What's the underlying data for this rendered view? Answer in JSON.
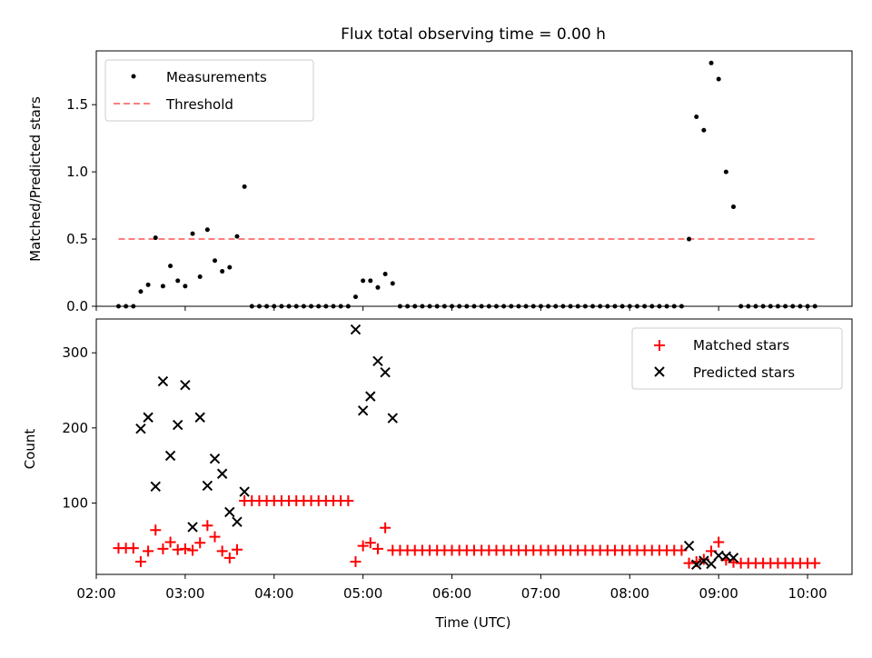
{
  "figure": {
    "title": "Flux total observing time = 0.00 h"
  },
  "colors": {
    "measurement": "#000000",
    "threshold": "#ff7f7f",
    "matched": "#ff0000",
    "predicted": "#000000"
  },
  "chart_data": [
    {
      "type": "scatter",
      "title": "Flux total observing time = 0.00 h",
      "xlabel": "",
      "ylabel": "Matched/Predicted stars",
      "xlim": [
        "02:00",
        "10:30"
      ],
      "ylim": [
        0,
        1.9
      ],
      "yticks": [
        0.0,
        0.5,
        1.0,
        1.5
      ],
      "ytick_labels": [
        "0.0",
        "0.5",
        "1.0",
        "1.5"
      ],
      "grid": false,
      "legend_position": "top-left",
      "threshold": {
        "name": "Threshold",
        "y": 0.5,
        "x_range": [
          "02:15",
          "10:05"
        ]
      },
      "series": [
        {
          "name": "Measurements",
          "points": [
            [
              "02:15",
              0
            ],
            [
              "02:20",
              0
            ],
            [
              "02:25",
              0
            ],
            [
              "02:30",
              0.11
            ],
            [
              "02:35",
              0.16
            ],
            [
              "02:40",
              0.51
            ],
            [
              "02:45",
              0.15
            ],
            [
              "02:50",
              0.3
            ],
            [
              "02:55",
              0.19
            ],
            [
              "03:00",
              0.15
            ],
            [
              "03:05",
              0.54
            ],
            [
              "03:10",
              0.22
            ],
            [
              "03:15",
              0.57
            ],
            [
              "03:20",
              0.34
            ],
            [
              "03:25",
              0.26
            ],
            [
              "03:30",
              0.29
            ],
            [
              "03:35",
              0.52
            ],
            [
              "03:40",
              0.89
            ],
            [
              "03:45",
              0
            ],
            [
              "03:50",
              0
            ],
            [
              "03:55",
              0
            ],
            [
              "04:00",
              0
            ],
            [
              "04:05",
              0
            ],
            [
              "04:10",
              0
            ],
            [
              "04:15",
              0
            ],
            [
              "04:20",
              0
            ],
            [
              "04:25",
              0
            ],
            [
              "04:30",
              0
            ],
            [
              "04:35",
              0
            ],
            [
              "04:40",
              0
            ],
            [
              "04:45",
              0
            ],
            [
              "04:50",
              0
            ],
            [
              "04:55",
              0.07
            ],
            [
              "05:00",
              0.19
            ],
            [
              "05:05",
              0.19
            ],
            [
              "05:10",
              0.14
            ],
            [
              "05:15",
              0.24
            ],
            [
              "05:20",
              0.17
            ],
            [
              "05:25",
              0
            ],
            [
              "05:30",
              0
            ],
            [
              "05:35",
              0
            ],
            [
              "05:40",
              0
            ],
            [
              "05:45",
              0
            ],
            [
              "05:50",
              0
            ],
            [
              "05:55",
              0
            ],
            [
              "06:00",
              0
            ],
            [
              "06:05",
              0
            ],
            [
              "06:10",
              0
            ],
            [
              "06:15",
              0
            ],
            [
              "06:20",
              0
            ],
            [
              "06:25",
              0
            ],
            [
              "06:30",
              0
            ],
            [
              "06:35",
              0
            ],
            [
              "06:40",
              0
            ],
            [
              "06:45",
              0
            ],
            [
              "06:50",
              0
            ],
            [
              "06:55",
              0
            ],
            [
              "07:00",
              0
            ],
            [
              "07:05",
              0
            ],
            [
              "07:10",
              0
            ],
            [
              "07:15",
              0
            ],
            [
              "07:20",
              0
            ],
            [
              "07:25",
              0
            ],
            [
              "07:30",
              0
            ],
            [
              "07:35",
              0
            ],
            [
              "07:40",
              0
            ],
            [
              "07:45",
              0
            ],
            [
              "07:50",
              0
            ],
            [
              "07:55",
              0
            ],
            [
              "08:00",
              0
            ],
            [
              "08:05",
              0
            ],
            [
              "08:10",
              0
            ],
            [
              "08:15",
              0
            ],
            [
              "08:20",
              0
            ],
            [
              "08:25",
              0
            ],
            [
              "08:30",
              0
            ],
            [
              "08:35",
              0
            ],
            [
              "08:40",
              0.5
            ],
            [
              "08:45",
              1.41
            ],
            [
              "08:50",
              1.31
            ],
            [
              "08:55",
              1.81
            ],
            [
              "09:00",
              1.69
            ],
            [
              "09:05",
              1.0
            ],
            [
              "09:10",
              0.74
            ],
            [
              "09:15",
              0
            ],
            [
              "09:20",
              0
            ],
            [
              "09:25",
              0
            ],
            [
              "09:30",
              0
            ],
            [
              "09:35",
              0
            ],
            [
              "09:40",
              0
            ],
            [
              "09:45",
              0
            ],
            [
              "09:50",
              0
            ],
            [
              "09:55",
              0
            ],
            [
              "10:00",
              0
            ],
            [
              "10:05",
              0
            ]
          ]
        }
      ]
    },
    {
      "type": "scatter",
      "title": "",
      "xlabel": "Time (UTC)",
      "ylabel": "Count",
      "xlim": [
        "02:00",
        "10:30"
      ],
      "ylim": [
        5,
        345
      ],
      "xticks": [
        "02:00",
        "03:00",
        "04:00",
        "05:00",
        "06:00",
        "07:00",
        "08:00",
        "09:00",
        "10:00"
      ],
      "yticks": [
        100,
        200,
        300
      ],
      "ytick_labels": [
        "100",
        "200",
        "300"
      ],
      "grid": false,
      "legend_position": "top-right",
      "series": [
        {
          "name": "Matched stars",
          "marker": "plus",
          "points": [
            [
              "02:15",
              40
            ],
            [
              "02:20",
              40
            ],
            [
              "02:25",
              40
            ],
            [
              "02:30",
              22
            ],
            [
              "02:35",
              36
            ],
            [
              "02:40",
              64
            ],
            [
              "02:45",
              39
            ],
            [
              "02:50",
              48
            ],
            [
              "02:55",
              38
            ],
            [
              "03:00",
              39
            ],
            [
              "03:05",
              37
            ],
            [
              "03:10",
              47
            ],
            [
              "03:15",
              70
            ],
            [
              "03:20",
              55
            ],
            [
              "03:25",
              36
            ],
            [
              "03:30",
              27
            ],
            [
              "03:35",
              38
            ],
            [
              "03:40",
              103
            ],
            [
              "03:45",
              103
            ],
            [
              "03:50",
              103
            ],
            [
              "03:55",
              103
            ],
            [
              "04:00",
              103
            ],
            [
              "04:05",
              103
            ],
            [
              "04:10",
              103
            ],
            [
              "04:15",
              103
            ],
            [
              "04:20",
              103
            ],
            [
              "04:25",
              103
            ],
            [
              "04:30",
              103
            ],
            [
              "04:35",
              103
            ],
            [
              "04:40",
              103
            ],
            [
              "04:45",
              103
            ],
            [
              "04:50",
              103
            ],
            [
              "04:55",
              22
            ],
            [
              "05:00",
              43
            ],
            [
              "05:05",
              47
            ],
            [
              "05:10",
              39
            ],
            [
              "05:15",
              67
            ],
            [
              "05:20",
              37
            ],
            [
              "05:25",
              37
            ],
            [
              "05:30",
              37
            ],
            [
              "05:35",
              37
            ],
            [
              "05:40",
              37
            ],
            [
              "05:45",
              37
            ],
            [
              "05:50",
              37
            ],
            [
              "05:55",
              37
            ],
            [
              "06:00",
              37
            ],
            [
              "06:05",
              37
            ],
            [
              "06:10",
              37
            ],
            [
              "06:15",
              37
            ],
            [
              "06:20",
              37
            ],
            [
              "06:25",
              37
            ],
            [
              "06:30",
              37
            ],
            [
              "06:35",
              37
            ],
            [
              "06:40",
              37
            ],
            [
              "06:45",
              37
            ],
            [
              "06:50",
              37
            ],
            [
              "06:55",
              37
            ],
            [
              "07:00",
              37
            ],
            [
              "07:05",
              37
            ],
            [
              "07:10",
              37
            ],
            [
              "07:15",
              37
            ],
            [
              "07:20",
              37
            ],
            [
              "07:25",
              37
            ],
            [
              "07:30",
              37
            ],
            [
              "07:35",
              37
            ],
            [
              "07:40",
              37
            ],
            [
              "07:45",
              37
            ],
            [
              "07:50",
              37
            ],
            [
              "07:55",
              37
            ],
            [
              "08:00",
              37
            ],
            [
              "08:05",
              37
            ],
            [
              "08:10",
              37
            ],
            [
              "08:15",
              37
            ],
            [
              "08:20",
              37
            ],
            [
              "08:25",
              37
            ],
            [
              "08:30",
              37
            ],
            [
              "08:35",
              37
            ],
            [
              "08:40",
              20
            ],
            [
              "08:45",
              22
            ],
            [
              "08:50",
              25
            ],
            [
              "08:55",
              36
            ],
            [
              "09:00",
              48
            ],
            [
              "09:05",
              24
            ],
            [
              "09:10",
              21
            ],
            [
              "09:15",
              20
            ],
            [
              "09:20",
              20
            ],
            [
              "09:25",
              20
            ],
            [
              "09:30",
              20
            ],
            [
              "09:35",
              20
            ],
            [
              "09:40",
              20
            ],
            [
              "09:45",
              20
            ],
            [
              "09:50",
              20
            ],
            [
              "09:55",
              20
            ],
            [
              "10:00",
              20
            ],
            [
              "10:05",
              20
            ]
          ]
        },
        {
          "name": "Predicted stars",
          "marker": "x",
          "points": [
            [
              "02:30",
              199
            ],
            [
              "02:35",
              214
            ],
            [
              "02:40",
              122
            ],
            [
              "02:45",
              262
            ],
            [
              "02:50",
              163
            ],
            [
              "02:55",
              204
            ],
            [
              "03:00",
              257
            ],
            [
              "03:05",
              68
            ],
            [
              "03:10",
              214
            ],
            [
              "03:15",
              123
            ],
            [
              "03:20",
              159
            ],
            [
              "03:25",
              139
            ],
            [
              "03:30",
              88
            ],
            [
              "03:35",
              75
            ],
            [
              "03:40",
              115
            ],
            [
              "04:55",
              331
            ],
            [
              "05:00",
              223
            ],
            [
              "05:05",
              242
            ],
            [
              "05:10",
              289
            ],
            [
              "05:15",
              274
            ],
            [
              "05:20",
              213
            ],
            [
              "08:40",
              43
            ],
            [
              "08:45",
              18
            ],
            [
              "08:50",
              23
            ],
            [
              "08:55",
              19
            ],
            [
              "09:00",
              30
            ],
            [
              "09:05",
              29
            ],
            [
              "09:10",
              27
            ]
          ]
        }
      ]
    }
  ]
}
